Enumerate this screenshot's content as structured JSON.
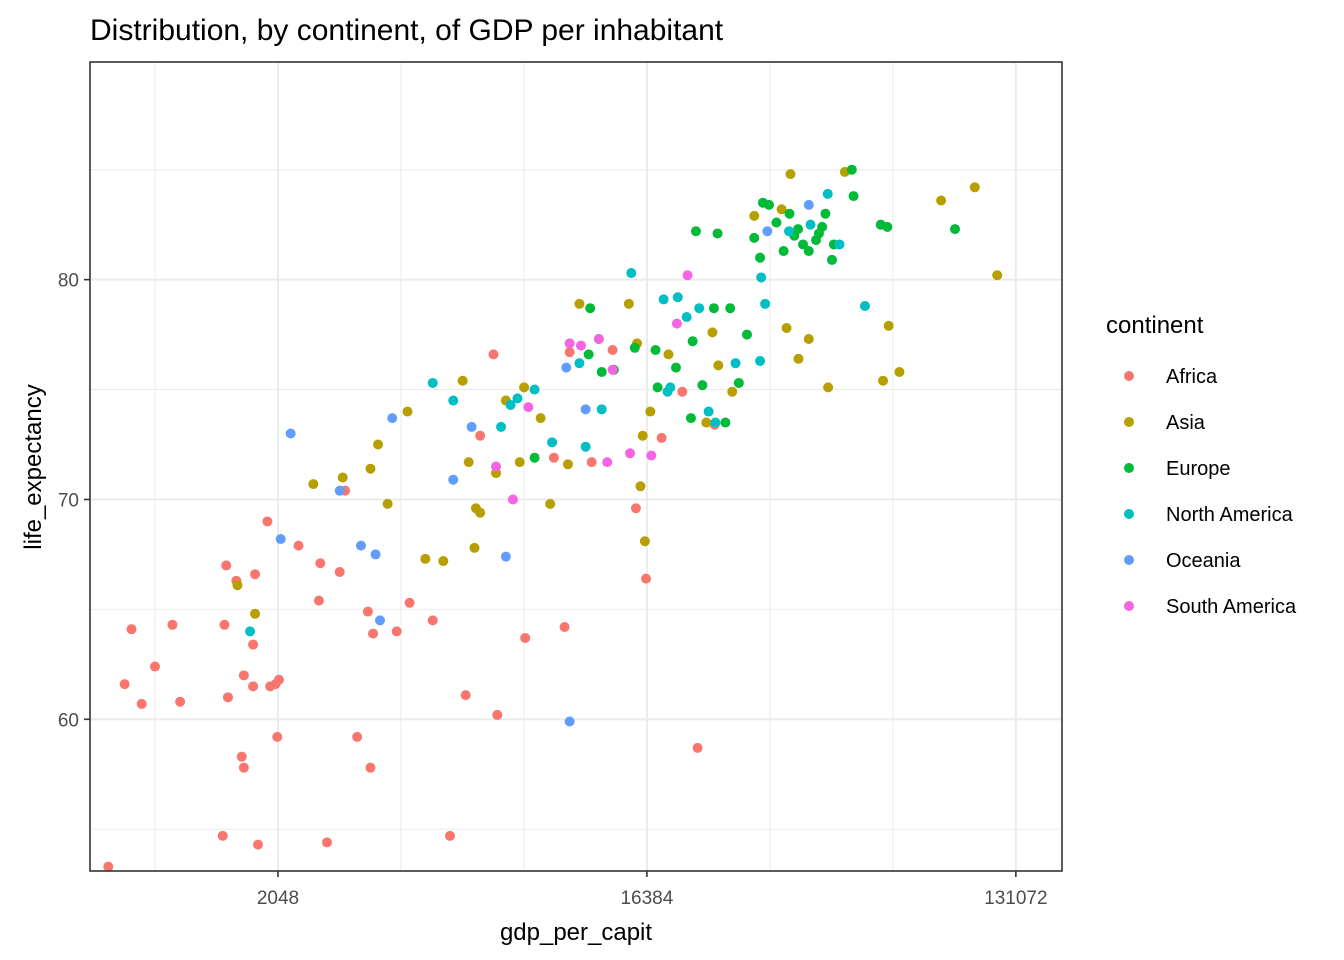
{
  "chart_data": {
    "type": "scatter",
    "title": "Distribution, by continent, of GDP per inhabitant",
    "xlabel": "gdp_per_capit",
    "ylabel": "life_expectancy",
    "x_scale": "log2",
    "xlim": [
      710,
      170000
    ],
    "ylim": [
      53.1,
      89.9
    ],
    "x_ticks": [
      2048,
      16384,
      131072
    ],
    "x_tick_labels": [
      "2048",
      "16384",
      "131072"
    ],
    "x_minor_ticks": [
      1024,
      4096,
      8192,
      32768,
      65536
    ],
    "y_ticks": [
      60,
      70,
      80
    ],
    "y_tick_labels": [
      "60",
      "70",
      "80"
    ],
    "y_minor_ticks": [
      55,
      65,
      75,
      85
    ],
    "grid": true,
    "legend": {
      "title": "continent",
      "position": "right",
      "entries": [
        {
          "name": "Africa",
          "color": "#F8766D"
        },
        {
          "name": "Asia",
          "color": "#B79F00"
        },
        {
          "name": "Europe",
          "color": "#00BA38"
        },
        {
          "name": "North America",
          "color": "#00BFC4"
        },
        {
          "name": "Oceania",
          "color": "#619CFF"
        },
        {
          "name": "South America",
          "color": "#F564E3"
        }
      ]
    },
    "series": [
      {
        "name": "Africa",
        "color": "#F8766D",
        "points": [
          [
            787,
            53.3
          ],
          [
            863,
            61.6
          ],
          [
            897,
            64.1
          ],
          [
            950,
            60.7
          ],
          [
            1024,
            62.4
          ],
          [
            1130,
            64.3
          ],
          [
            1180,
            60.8
          ],
          [
            1500,
            54.7
          ],
          [
            1530,
            67.0
          ],
          [
            1515,
            64.3
          ],
          [
            1545,
            61.0
          ],
          [
            1620,
            66.3
          ],
          [
            1670,
            58.3
          ],
          [
            1690,
            57.8
          ],
          [
            1690,
            62.0
          ],
          [
            1780,
            61.5
          ],
          [
            1780,
            63.4
          ],
          [
            1800,
            66.6
          ],
          [
            1830,
            54.3
          ],
          [
            1930,
            69.0
          ],
          [
            1960,
            61.5
          ],
          [
            2020,
            61.6
          ],
          [
            2040,
            59.2
          ],
          [
            2060,
            61.8
          ],
          [
            2300,
            67.9
          ],
          [
            2580,
            65.4
          ],
          [
            2600,
            67.1
          ],
          [
            2700,
            54.4
          ],
          [
            2900,
            66.7
          ],
          [
            2990,
            70.4
          ],
          [
            3200,
            59.2
          ],
          [
            3400,
            64.9
          ],
          [
            3450,
            57.8
          ],
          [
            3500,
            63.9
          ],
          [
            4000,
            64.0
          ],
          [
            4300,
            65.3
          ],
          [
            4900,
            64.5
          ],
          [
            5400,
            54.7
          ],
          [
            5900,
            61.1
          ],
          [
            6400,
            72.9
          ],
          [
            6900,
            76.6
          ],
          [
            7050,
            60.2
          ],
          [
            8250,
            63.7
          ],
          [
            9700,
            71.9
          ],
          [
            10300,
            64.2
          ],
          [
            10600,
            76.7
          ],
          [
            12000,
            71.7
          ],
          [
            13500,
            76.8
          ],
          [
            15400,
            69.6
          ],
          [
            16300,
            66.4
          ],
          [
            17800,
            72.8
          ],
          [
            20000,
            74.9
          ],
          [
            21800,
            58.7
          ],
          [
            24000,
            73.4
          ]
        ]
      },
      {
        "name": "Asia",
        "color": "#B79F00",
        "points": [
          [
            1630,
            66.1
          ],
          [
            1800,
            64.8
          ],
          [
            2500,
            70.7
          ],
          [
            2950,
            71.0
          ],
          [
            3450,
            71.4
          ],
          [
            3600,
            72.5
          ],
          [
            3800,
            69.8
          ],
          [
            4250,
            74.0
          ],
          [
            4700,
            67.3
          ],
          [
            5200,
            67.2
          ],
          [
            5800,
            75.4
          ],
          [
            6000,
            71.7
          ],
          [
            6200,
            67.8
          ],
          [
            6250,
            69.6
          ],
          [
            6400,
            69.4
          ],
          [
            7000,
            71.2
          ],
          [
            7400,
            74.5
          ],
          [
            8200,
            75.1
          ],
          [
            8000,
            71.7
          ],
          [
            9000,
            73.7
          ],
          [
            9500,
            69.8
          ],
          [
            10500,
            71.6
          ],
          [
            11200,
            78.9
          ],
          [
            14800,
            78.9
          ],
          [
            15500,
            77.1
          ],
          [
            15800,
            70.6
          ],
          [
            16000,
            72.9
          ],
          [
            16200,
            68.1
          ],
          [
            16700,
            74.0
          ],
          [
            18500,
            76.6
          ],
          [
            22900,
            73.5
          ],
          [
            23700,
            77.6
          ],
          [
            24500,
            76.1
          ],
          [
            26500,
            74.9
          ],
          [
            30000,
            82.9
          ],
          [
            35000,
            83.2
          ],
          [
            36000,
            77.8
          ],
          [
            36800,
            84.8
          ],
          [
            38500,
            76.4
          ],
          [
            40800,
            77.3
          ],
          [
            45500,
            75.1
          ],
          [
            50000,
            84.9
          ],
          [
            62000,
            75.4
          ],
          [
            64000,
            77.9
          ],
          [
            68000,
            75.8
          ],
          [
            86000,
            83.6
          ],
          [
            104000,
            84.2
          ],
          [
            118000,
            80.2
          ]
        ]
      },
      {
        "name": "Europe",
        "color": "#00BA38",
        "points": [
          [
            8700,
            71.9
          ],
          [
            11800,
            76.6
          ],
          [
            11900,
            78.7
          ],
          [
            12500,
            77.3
          ],
          [
            12700,
            75.8
          ],
          [
            13600,
            75.9
          ],
          [
            15300,
            76.9
          ],
          [
            17200,
            76.8
          ],
          [
            17400,
            75.1
          ],
          [
            19300,
            76.0
          ],
          [
            21000,
            73.7
          ],
          [
            21200,
            77.2
          ],
          [
            21600,
            82.2
          ],
          [
            22400,
            75.2
          ],
          [
            23900,
            78.7
          ],
          [
            24400,
            82.1
          ],
          [
            25500,
            73.5
          ],
          [
            26200,
            78.7
          ],
          [
            27500,
            75.3
          ],
          [
            28800,
            77.5
          ],
          [
            30000,
            81.9
          ],
          [
            31000,
            81.0
          ],
          [
            31500,
            83.5
          ],
          [
            32600,
            83.4
          ],
          [
            34000,
            82.6
          ],
          [
            35400,
            81.3
          ],
          [
            36600,
            83.0
          ],
          [
            37600,
            82.0
          ],
          [
            38400,
            82.3
          ],
          [
            39500,
            81.6
          ],
          [
            40800,
            81.3
          ],
          [
            42500,
            81.8
          ],
          [
            43200,
            82.1
          ],
          [
            44000,
            82.4
          ],
          [
            44800,
            83.0
          ],
          [
            46500,
            80.9
          ],
          [
            47000,
            81.6
          ],
          [
            52000,
            85.0
          ],
          [
            52500,
            83.8
          ],
          [
            61200,
            82.5
          ],
          [
            63500,
            82.4
          ],
          [
            93000,
            82.3
          ]
        ]
      },
      {
        "name": "North America",
        "color": "#00BFC4",
        "points": [
          [
            1750,
            64.0
          ],
          [
            4900,
            75.3
          ],
          [
            5500,
            74.5
          ],
          [
            7200,
            73.3
          ],
          [
            7600,
            74.3
          ],
          [
            7900,
            74.6
          ],
          [
            8700,
            75.0
          ],
          [
            9600,
            72.6
          ],
          [
            11200,
            76.2
          ],
          [
            11600,
            72.4
          ],
          [
            12700,
            74.1
          ],
          [
            15000,
            80.3
          ],
          [
            18000,
            79.1
          ],
          [
            18400,
            74.9
          ],
          [
            18700,
            75.1
          ],
          [
            19500,
            79.2
          ],
          [
            20500,
            78.3
          ],
          [
            22000,
            78.7
          ],
          [
            23200,
            74.0
          ],
          [
            24100,
            73.5
          ],
          [
            27000,
            76.2
          ],
          [
            31200,
            80.1
          ],
          [
            31900,
            78.9
          ],
          [
            31000,
            76.3
          ],
          [
            36500,
            82.2
          ],
          [
            41200,
            82.5
          ],
          [
            45400,
            83.9
          ],
          [
            48500,
            81.6
          ],
          [
            56000,
            78.8
          ]
        ]
      },
      {
        "name": "Oceania",
        "color": "#619CFF",
        "points": [
          [
            2080,
            68.2
          ],
          [
            2200,
            73.0
          ],
          [
            2900,
            70.4
          ],
          [
            3270,
            67.9
          ],
          [
            3550,
            67.5
          ],
          [
            3640,
            64.5
          ],
          [
            3900,
            73.7
          ],
          [
            5500,
            70.9
          ],
          [
            6100,
            73.3
          ],
          [
            7400,
            67.4
          ],
          [
            10400,
            76.0
          ],
          [
            10600,
            59.9
          ],
          [
            11600,
            74.1
          ],
          [
            32300,
            82.2
          ],
          [
            40800,
            83.4
          ]
        ]
      },
      {
        "name": "South America",
        "color": "#F564E3",
        "points": [
          [
            7000,
            71.5
          ],
          [
            7700,
            70.0
          ],
          [
            8400,
            74.2
          ],
          [
            10600,
            77.1
          ],
          [
            11300,
            77.0
          ],
          [
            12500,
            77.3
          ],
          [
            13100,
            71.7
          ],
          [
            13500,
            75.9
          ],
          [
            14900,
            72.1
          ],
          [
            16800,
            72.0
          ],
          [
            19400,
            78.0
          ],
          [
            20600,
            80.2
          ]
        ]
      }
    ]
  }
}
